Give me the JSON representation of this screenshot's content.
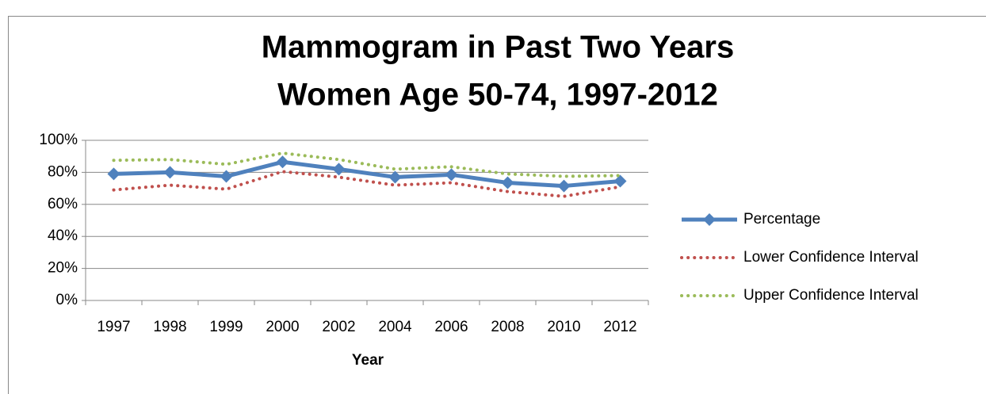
{
  "chart_data": {
    "type": "line",
    "title": [
      "Mammogram in Past Two Years",
      "Women Age 50-74, 1997-2012"
    ],
    "x_label": "Year",
    "categories": [
      "1997",
      "1998",
      "1999",
      "2000",
      "2002",
      "2004",
      "2006",
      "2008",
      "2010",
      "2012"
    ],
    "series": [
      {
        "name": "Percentage",
        "color": "#4f81bd",
        "style": "solid",
        "marker": "diamond",
        "values": [
          79,
          80,
          77.5,
          86.5,
          82,
          77,
          78.5,
          73.5,
          71.5,
          74.5
        ]
      },
      {
        "name": "Lower Confidence Interval",
        "color": "#c0504d",
        "style": "dotted",
        "values": [
          69,
          72,
          69.5,
          80.5,
          77,
          72,
          73.5,
          68,
          65,
          71
        ]
      },
      {
        "name": "Upper Confidence Interval",
        "color": "#9bbb59",
        "style": "dotted",
        "values": [
          87.5,
          88,
          85,
          92,
          88,
          82,
          83.5,
          79,
          77.5,
          78
        ]
      }
    ],
    "ylim": [
      0,
      100
    ],
    "yticks": [
      {
        "value": 0,
        "label": "0%"
      },
      {
        "value": 20,
        "label": "20%"
      },
      {
        "value": 40,
        "label": "40%"
      },
      {
        "value": 60,
        "label": "60%"
      },
      {
        "value": 80,
        "label": "80%"
      },
      {
        "value": 100,
        "label": "100%"
      }
    ],
    "grid": true,
    "legend": "right"
  }
}
